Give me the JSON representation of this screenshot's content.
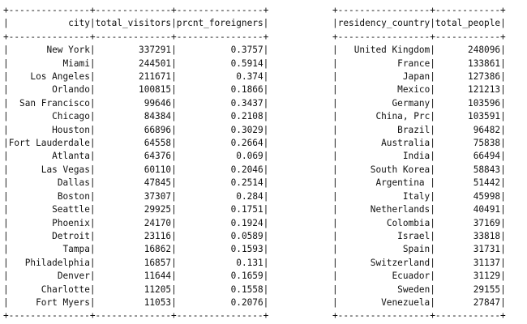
{
  "left_table": {
    "headers": [
      "city",
      "total_visitors",
      "prcnt_foreigners"
    ],
    "rows": [
      [
        "New York",
        "337291",
        "0.3757"
      ],
      [
        "Miami",
        "244501",
        "0.5914"
      ],
      [
        "Los Angeles",
        "211671",
        "0.374"
      ],
      [
        "Orlando",
        "100815",
        "0.1866"
      ],
      [
        "San Francisco",
        "99646",
        "0.3437"
      ],
      [
        "Chicago",
        "84384",
        "0.2108"
      ],
      [
        "Houston",
        "66896",
        "0.3029"
      ],
      [
        "Fort Lauderdale",
        "64558",
        "0.2664"
      ],
      [
        "Atlanta",
        "64376",
        "0.069"
      ],
      [
        "Las Vegas",
        "60110",
        "0.2046"
      ],
      [
        "Dallas",
        "47845",
        "0.2514"
      ],
      [
        "Boston",
        "37307",
        "0.284"
      ],
      [
        "Seattle",
        "29925",
        "0.1751"
      ],
      [
        "Phoenix",
        "24170",
        "0.1924"
      ],
      [
        "Detroit",
        "23116",
        "0.0589"
      ],
      [
        "Tampa",
        "16862",
        "0.1593"
      ],
      [
        "Philadelphia",
        "16857",
        "0.131"
      ],
      [
        "Denver",
        "11644",
        "0.1659"
      ],
      [
        "Charlotte",
        "11205",
        "0.1558"
      ],
      [
        "Fort Myers",
        "11053",
        "0.2076"
      ]
    ]
  },
  "right_table": {
    "headers": [
      "residency_country",
      "total_people"
    ],
    "rows": [
      [
        "United Kingdom",
        "248096"
      ],
      [
        "France",
        "133861"
      ],
      [
        "Japan",
        "127386"
      ],
      [
        "Mexico",
        "121213"
      ],
      [
        "Germany",
        "103596"
      ],
      [
        "China, Prc",
        "103591"
      ],
      [
        "Brazil",
        "96482"
      ],
      [
        "Australia",
        "75838"
      ],
      [
        "India",
        "66494"
      ],
      [
        "South Korea",
        "58843"
      ],
      [
        "Argentina ",
        "51442"
      ],
      [
        "Italy",
        "45998"
      ],
      [
        "Netherlands",
        "40491"
      ],
      [
        "Colombia",
        "37169"
      ],
      [
        "Israel",
        "33818"
      ],
      [
        "Spain",
        "31731"
      ],
      [
        "Switzerland",
        "31137"
      ],
      [
        "Ecuador",
        "31129"
      ],
      [
        "Sweden",
        "29155"
      ],
      [
        "Venezuela",
        "27847"
      ]
    ]
  }
}
